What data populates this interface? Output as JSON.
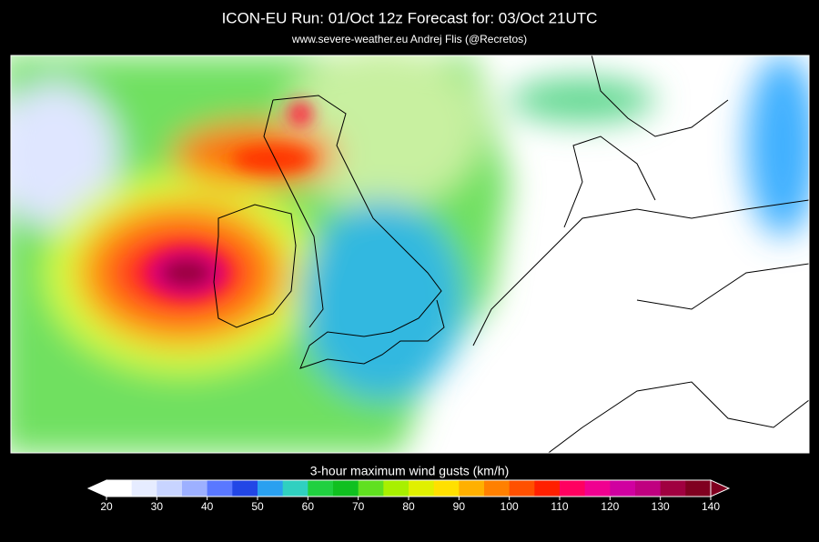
{
  "header": {
    "title": "ICON-EU   Run: 01/Oct 12z    Forecast for: 03/Oct 21UTC",
    "subtitle": "www.severe-weather.eu  Andrej Flis (@Recretos)"
  },
  "legend": {
    "label": "3-hour maximum wind gusts (km/h)",
    "range": [
      20,
      140
    ],
    "ticks": [
      20,
      30,
      40,
      50,
      60,
      70,
      80,
      90,
      100,
      110,
      120,
      130,
      140
    ],
    "colors": [
      "#ffffff",
      "#e6ecff",
      "#c8d4ff",
      "#9db0ff",
      "#5a78ff",
      "#2246e6",
      "#2aa0f0",
      "#30d0c0",
      "#20d040",
      "#10c020",
      "#60e020",
      "#a8f000",
      "#e0f000",
      "#ffe000",
      "#ffb000",
      "#ff8000",
      "#ff5000",
      "#ff2000",
      "#ff0060",
      "#f00090",
      "#d000a0",
      "#c00080",
      "#a00040",
      "#800020"
    ]
  }
}
